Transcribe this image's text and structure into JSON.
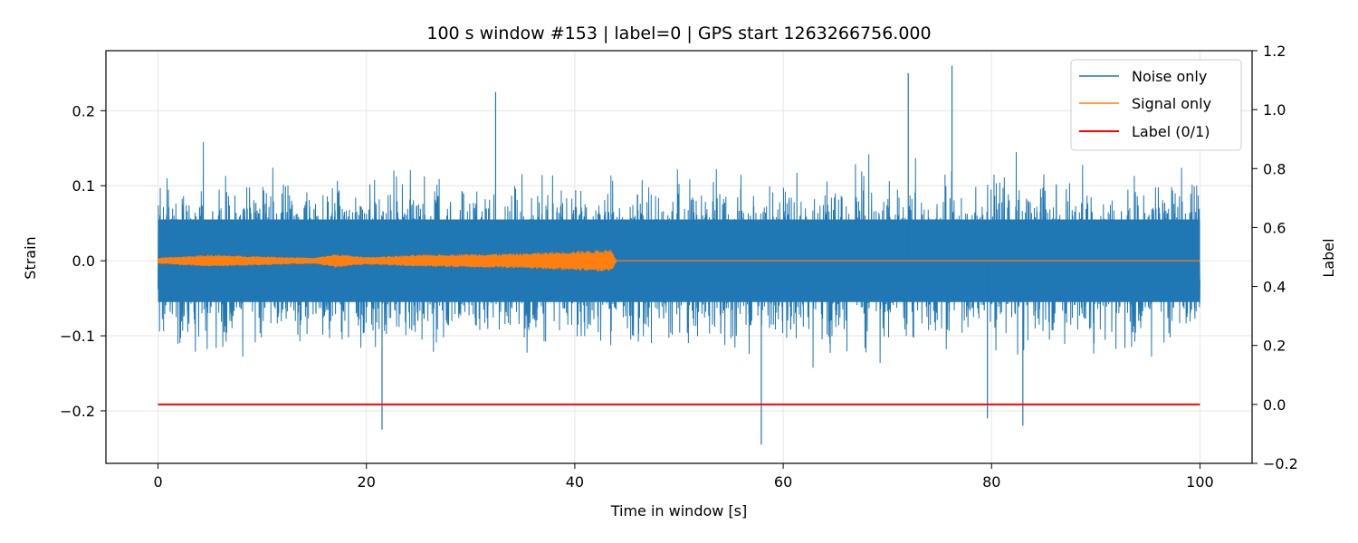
{
  "chart_data": {
    "type": "line",
    "title": "100 s window #153 | label=0 | GPS start 1263266756.000",
    "xlabel": "Time in window [s]",
    "ylabel": "Strain",
    "y2label": "Label",
    "xlim": [
      -5,
      105
    ],
    "ylim": [
      -0.27,
      0.28
    ],
    "y2lim": [
      -0.2,
      1.2
    ],
    "xticks": [
      0,
      20,
      40,
      60,
      80,
      100
    ],
    "xtick_labels": [
      "0",
      "20",
      "40",
      "60",
      "80",
      "100"
    ],
    "yticks": [
      0.2,
      0.1,
      0.0,
      -0.1,
      -0.2
    ],
    "ytick_labels": [
      "0.2",
      "0.1",
      "0.0",
      "−0.1",
      "−0.2"
    ],
    "y2ticks": [
      1.2,
      1.0,
      0.8,
      0.6,
      0.4,
      0.2,
      0.0,
      -0.2
    ],
    "y2tick_labels": [
      "1.2",
      "1.0",
      "0.8",
      "0.6",
      "0.4",
      "0.2",
      "0.0",
      "−0.2"
    ],
    "grid": true,
    "legend_position": "top-right",
    "series": [
      {
        "name": "Noise only",
        "color": "#1f77b4",
        "axis": "left",
        "x_range": [
          0,
          100
        ],
        "typical_band": [
          -0.1,
          0.1
        ],
        "extremes": [
          {
            "x": 57.9,
            "y": -0.245
          },
          {
            "x": 76.2,
            "y": 0.26
          },
          {
            "x": 72.0,
            "y": 0.25
          },
          {
            "x": 32.4,
            "y": 0.225
          },
          {
            "x": 21.5,
            "y": -0.225
          },
          {
            "x": 79.6,
            "y": -0.21
          },
          {
            "x": 83.0,
            "y": -0.22
          }
        ]
      },
      {
        "name": "Signal only",
        "color": "#ff7f0e",
        "axis": "left",
        "x": [
          0,
          5,
          10,
          15,
          17,
          20,
          25,
          30,
          35,
          40,
          43.5,
          44,
          50,
          60,
          70,
          80,
          90,
          100
        ],
        "envelope": [
          0.004,
          0.008,
          0.006,
          0.004,
          0.009,
          0.005,
          0.008,
          0.009,
          0.01,
          0.013,
          0.015,
          0.0,
          0.0,
          0.0,
          0.0,
          0.0,
          0.0,
          0.0
        ]
      },
      {
        "name": "Label (0/1)",
        "color": "#ff0000",
        "axis": "right",
        "x": [
          0,
          100
        ],
        "values": [
          0,
          0
        ]
      }
    ]
  }
}
